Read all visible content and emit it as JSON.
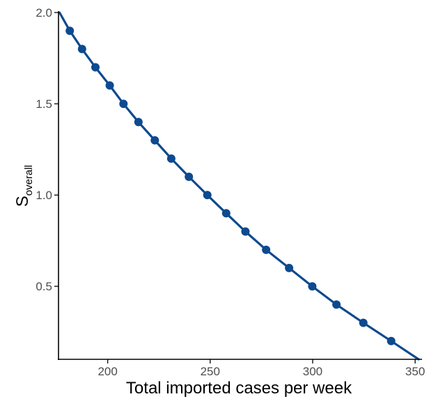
{
  "chart_data": {
    "type": "line",
    "title": "",
    "xlabel": "Total imported cases per week",
    "ylabel": {
      "main": "S",
      "subscript": "overall"
    },
    "xlim": [
      176,
      352
    ],
    "ylim": [
      0.1,
      2.0
    ],
    "x_ticks": [
      200,
      250,
      300,
      350
    ],
    "y_ticks": [
      0.5,
      1.0,
      1.5,
      2.0
    ],
    "x_tick_labels": [
      "200",
      "250",
      "300",
      "350"
    ],
    "y_tick_labels": [
      "0.5",
      "1.0",
      "1.5",
      "2.0"
    ],
    "grid": false,
    "legend": "none",
    "colors": {
      "series": "#0d4a8f",
      "axis": "#000000"
    },
    "series": [
      {
        "x": [
          176.5,
          181.5,
          187.5,
          194.0,
          201.0,
          207.7,
          215.0,
          223.0,
          231.0,
          239.6,
          248.6,
          257.8,
          267.2,
          277.3,
          288.5,
          299.8,
          311.6,
          324.7,
          338.3,
          351.7
        ],
        "y": [
          2.0,
          1.9,
          1.8,
          1.7,
          1.6,
          1.5,
          1.4,
          1.3,
          1.2,
          1.1,
          1.0,
          0.9,
          0.8,
          0.7,
          0.6,
          0.5,
          0.4,
          0.3,
          0.2,
          0.1
        ],
        "markers": [
          false,
          true,
          true,
          true,
          true,
          true,
          true,
          true,
          true,
          true,
          true,
          true,
          true,
          true,
          true,
          true,
          true,
          true,
          true,
          false
        ]
      }
    ]
  }
}
